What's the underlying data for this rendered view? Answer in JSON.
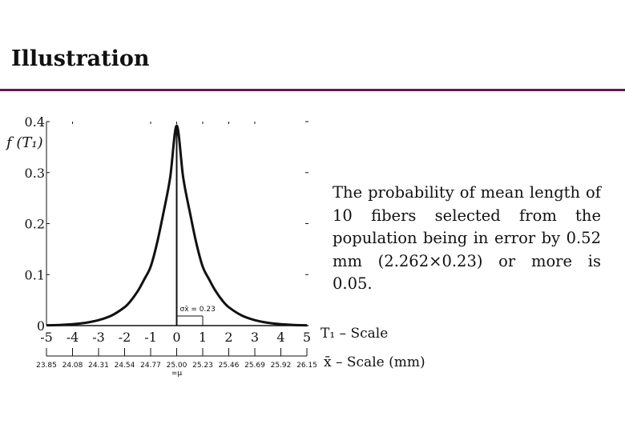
{
  "slide": {
    "title": "Illustration"
  },
  "description": "The probability of mean length of 10 fibers selected from the population being in error by 0.52 mm (2.262×0.23) or more is 0.05.",
  "chart_data": {
    "type": "line",
    "title": "",
    "ylabel": "f (T₁)",
    "x_axis_label": "T₁ – Scale",
    "x2_axis_label": "x̄ – Scale (mm)",
    "xlim": [
      -5,
      5
    ],
    "ylim": [
      0,
      0.4
    ],
    "x_ticks": [
      "-5",
      "-4",
      "-3",
      "-2",
      "-1",
      "0",
      "1",
      "2",
      "3",
      "4",
      "5"
    ],
    "y_ticks": [
      "0",
      "0.1",
      "0.2",
      "0.3",
      "0.4"
    ],
    "x2_ticks": [
      "23.85",
      "24.08",
      "24.31",
      "24.54",
      "24.77",
      "25.00",
      "25.23",
      "25.46",
      "25.69",
      "25.92",
      "26.15"
    ],
    "x2_sub_label": "=μ",
    "sigma_label": "σx̄ = 0.23",
    "peak": 0.392,
    "series": [
      {
        "x": [
          -5,
          -4.5,
          -4,
          -3.5,
          -3,
          -2.5,
          -2,
          -1.75,
          -1.5,
          -1.25,
          -1,
          -0.75,
          -0.5,
          -0.25,
          0,
          0.25,
          0.5,
          0.75,
          1,
          1.25,
          1.5,
          1.75,
          2,
          2.5,
          3,
          3.5,
          4,
          4.5,
          5
        ],
        "y": [
          0.0006,
          0.0012,
          0.0027,
          0.0055,
          0.0107,
          0.0197,
          0.0361,
          0.0494,
          0.0673,
          0.0903,
          0.1155,
          0.1625,
          0.2235,
          0.2907,
          0.3921,
          0.2907,
          0.2235,
          0.1625,
          0.1155,
          0.0903,
          0.0673,
          0.0494,
          0.0361,
          0.0197,
          0.0107,
          0.0055,
          0.0027,
          0.0012,
          0.0006
        ]
      }
    ]
  }
}
